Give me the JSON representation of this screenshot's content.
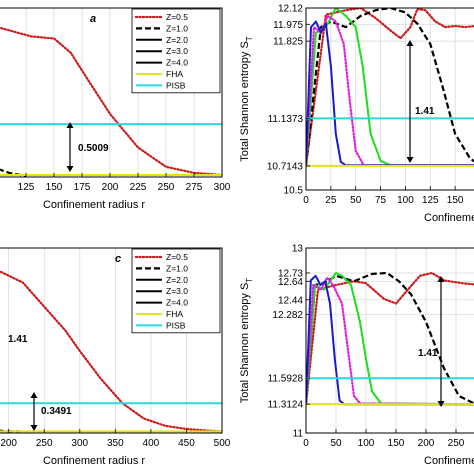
{
  "chart_data": [
    {
      "panel_label": "a",
      "type": "line",
      "xlabel": "Confinement radius r",
      "ylabel": "",
      "xlim": [
        100,
        300
      ],
      "xticks": [
        125,
        150,
        175,
        200,
        225,
        250,
        275,
        300
      ],
      "tick_labels_x": [
        "125",
        "150",
        "175",
        "200",
        "225",
        "250",
        "275",
        "300"
      ],
      "legend": {
        "placement": "top-right",
        "entries": [
          "Z=0.5",
          "Z=1.0",
          "Z=2.0",
          "Z=3.0",
          "Z=4.0",
          "FHA",
          "PISB"
        ]
      },
      "annotation": "0.5009",
      "series": [
        {
          "name": "Z=0.5",
          "color": "#cc1a1a",
          "style": "dotted",
          "x": [
            100,
            130,
            150,
            165,
            180,
            200,
            225,
            250,
            275,
            300
          ],
          "y": [
            11.23,
            11.14,
            11.12,
            10.98,
            10.72,
            10.38,
            10.05,
            9.86,
            9.8,
            9.78
          ]
        },
        {
          "name": "Z=1.0",
          "color": "#000000",
          "style": "dashed",
          "x": [
            100,
            110,
            120,
            125
          ],
          "y": [
            9.84,
            9.8,
            9.78,
            9.77
          ]
        },
        {
          "name": "PISB",
          "color": "#29d9e0",
          "style": "solid",
          "x": [
            100,
            300
          ],
          "y": [
            10.28,
            10.28
          ]
        },
        {
          "name": "FHA",
          "color": "#e6e21a",
          "style": "solid",
          "x": [
            100,
            300
          ],
          "y": [
            9.78,
            9.78
          ]
        }
      ],
      "grid": true
    },
    {
      "panel_label": "",
      "type": "line",
      "xlabel": "Confinement radius r",
      "ylabel": "Total Shannon entropy S_T",
      "ylabel_main": "Total Shannon entropy S",
      "ylabel_sub": "T",
      "xlim": [
        0,
        175
      ],
      "ylim": [
        10.5,
        12.12
      ],
      "xticks": [
        0,
        25,
        50,
        75,
        100,
        125,
        150
      ],
      "tick_labels_x": [
        "0",
        "25",
        "50",
        "75",
        "100",
        "125",
        "150"
      ],
      "yticks": [
        10.5,
        10.7143,
        11.1373,
        11.825,
        11.975,
        12.12
      ],
      "tick_labels_y": [
        "10.5",
        "10.7143",
        "11.1373",
        "11.825",
        "11.975",
        "12.12"
      ],
      "annotation": "1.41",
      "series": [
        {
          "name": "Z=0.5",
          "color": "#cc1a1a",
          "style": "dotted",
          "x": [
            0,
            20,
            40,
            55,
            70,
            85,
            95,
            105,
            112,
            120,
            130,
            140,
            150,
            160,
            170,
            175
          ],
          "y": [
            10.72,
            12.06,
            12.1,
            12.12,
            12.03,
            11.92,
            11.85,
            11.95,
            12.11,
            12.1,
            12.0,
            11.95,
            11.96,
            11.95,
            11.96,
            11.96
          ]
        },
        {
          "name": "Z=1.0",
          "color": "#000000",
          "style": "dashed",
          "x": [
            0,
            15,
            25,
            40,
            55,
            70,
            85,
            100,
            112,
            125,
            138,
            150,
            165,
            175
          ],
          "y": [
            10.72,
            11.95,
            12.0,
            11.95,
            12.05,
            12.1,
            12.12,
            12.08,
            11.98,
            11.8,
            11.4,
            11.0,
            10.78,
            10.72
          ]
        },
        {
          "name": "Z=2.0",
          "color": "#1ae01a",
          "style": "solid",
          "x": [
            0,
            10,
            20,
            30,
            40,
            50,
            57,
            65,
            75,
            85,
            175
          ],
          "y": [
            10.72,
            11.9,
            11.95,
            12.12,
            12.05,
            11.95,
            11.6,
            11.0,
            10.76,
            10.72,
            10.72
          ]
        },
        {
          "name": "Z=3.0",
          "color": "#e020e0",
          "style": "dotted",
          "x": [
            0,
            8,
            15,
            22,
            30,
            38,
            44,
            50,
            58,
            175
          ],
          "y": [
            10.72,
            11.95,
            11.9,
            12.05,
            12.0,
            11.8,
            11.3,
            10.85,
            10.72,
            10.72
          ]
        },
        {
          "name": "Z=4.0",
          "color": "#1a1acc",
          "style": "solid",
          "x": [
            0,
            5,
            10,
            15,
            20,
            25,
            30,
            35,
            40,
            175
          ],
          "y": [
            10.72,
            11.95,
            12.0,
            11.9,
            11.98,
            11.6,
            11.0,
            10.75,
            10.72,
            10.72
          ]
        },
        {
          "name": "PISB",
          "color": "#29d9e0",
          "style": "solid",
          "x": [
            0,
            175
          ],
          "y": [
            11.1373,
            11.1373
          ]
        },
        {
          "name": "FHA",
          "color": "#e6e21a",
          "style": "solid",
          "x": [
            0,
            175
          ],
          "y": [
            10.7143,
            10.7143
          ]
        }
      ],
      "grid": true
    },
    {
      "panel_label": "c",
      "type": "line",
      "xlabel": "Confinement radius r",
      "ylabel": "",
      "xlim": [
        185,
        500
      ],
      "xticks": [
        200,
        250,
        300,
        350,
        400,
        450,
        500
      ],
      "tick_labels_x": [
        "200",
        "250",
        "300",
        "350",
        "400",
        "450",
        "500"
      ],
      "legend": {
        "placement": "top-right",
        "entries": [
          "Z=0.5",
          "Z=1.0",
          "Z=2.0",
          "Z=3.0",
          "Z=4.0",
          "FHA",
          "PISB"
        ]
      },
      "annotations": [
        "1.41",
        "0.3491"
      ],
      "series": [
        {
          "name": "Z=0.5",
          "color": "#cc1a1a",
          "style": "dotted",
          "x": [
            185,
            220,
            250,
            280,
            300,
            330,
            360,
            390,
            420,
            450,
            480,
            500
          ],
          "y": [
            11.7,
            11.55,
            11.25,
            10.95,
            10.7,
            10.35,
            10.05,
            9.86,
            9.77,
            9.73,
            9.71,
            9.7
          ]
        },
        {
          "name": "Z=1.0",
          "color": "#000000",
          "style": "dashed",
          "x": [
            185,
            200,
            215
          ],
          "y": [
            9.71,
            9.7,
            9.7
          ]
        },
        {
          "name": "PISB",
          "color": "#29d9e0",
          "style": "solid",
          "x": [
            185,
            500
          ],
          "y": [
            10.05,
            10.05
          ]
        },
        {
          "name": "FHA",
          "color": "#e6e21a",
          "style": "solid",
          "x": [
            185,
            500
          ],
          "y": [
            9.7,
            9.7
          ]
        }
      ],
      "grid": true
    },
    {
      "panel_label": "",
      "type": "line",
      "xlabel": "Confinement radius r",
      "ylabel": "Total Shannon entropy S_T",
      "ylabel_main": "Total Shannon entropy S",
      "ylabel_sub": "T",
      "xlim": [
        0,
        290
      ],
      "ylim": [
        11,
        13
      ],
      "xticks": [
        0,
        50,
        100,
        150,
        200,
        250
      ],
      "tick_labels_x": [
        "0",
        "50",
        "100",
        "150",
        "200",
        "250"
      ],
      "yticks": [
        11,
        11.3124,
        11.5928,
        12.282,
        12.44,
        12.64,
        12.73,
        13
      ],
      "tick_labels_y": [
        "11",
        "11.3124",
        "11.5928",
        "12.282",
        "12.44",
        "12.64",
        "12.73",
        "13"
      ],
      "annotation": "1.41",
      "series": [
        {
          "name": "Z=0.5",
          "color": "#cc1a1a",
          "style": "dotted",
          "x": [
            0,
            20,
            50,
            80,
            100,
            130,
            150,
            170,
            190,
            210,
            230,
            260,
            290
          ],
          "y": [
            11.31,
            12.55,
            12.6,
            12.64,
            12.62,
            12.45,
            12.4,
            12.55,
            12.7,
            12.73,
            12.65,
            12.62,
            12.6
          ]
        },
        {
          "name": "Z=1.0",
          "color": "#000000",
          "style": "dashed",
          "x": [
            0,
            15,
            30,
            50,
            80,
            110,
            135,
            155,
            175,
            200,
            230,
            255,
            280,
            290
          ],
          "y": [
            11.31,
            12.6,
            12.62,
            12.7,
            12.64,
            12.72,
            12.73,
            12.64,
            12.5,
            12.2,
            11.7,
            11.4,
            11.32,
            11.31
          ]
        },
        {
          "name": "Z=2.0",
          "color": "#1ae01a",
          "style": "solid",
          "x": [
            0,
            15,
            30,
            50,
            60,
            75,
            90,
            100,
            110,
            125,
            290
          ],
          "y": [
            11.31,
            12.6,
            12.55,
            12.73,
            12.7,
            12.6,
            12.2,
            11.8,
            11.45,
            11.32,
            11.31
          ]
        },
        {
          "name": "Z=3.0",
          "color": "#e020e0",
          "style": "dotted",
          "x": [
            0,
            12,
            25,
            35,
            45,
            60,
            70,
            80,
            90,
            290
          ],
          "y": [
            11.31,
            12.6,
            12.55,
            12.68,
            12.6,
            12.4,
            11.9,
            11.4,
            11.32,
            11.31
          ]
        },
        {
          "name": "Z=4.0",
          "color": "#1a1acc",
          "style": "solid",
          "x": [
            0,
            8,
            16,
            24,
            32,
            40,
            48,
            56,
            64,
            290
          ],
          "y": [
            11.31,
            12.65,
            12.7,
            12.6,
            12.64,
            12.4,
            11.8,
            11.35,
            11.31,
            11.31
          ]
        },
        {
          "name": "PISB",
          "color": "#29d9e0",
          "style": "solid",
          "x": [
            0,
            290
          ],
          "y": [
            11.5928,
            11.5928
          ]
        },
        {
          "name": "FHA",
          "color": "#e6e21a",
          "style": "solid",
          "x": [
            0,
            290
          ],
          "y": [
            11.3124,
            11.3124
          ]
        }
      ],
      "grid": true
    }
  ]
}
